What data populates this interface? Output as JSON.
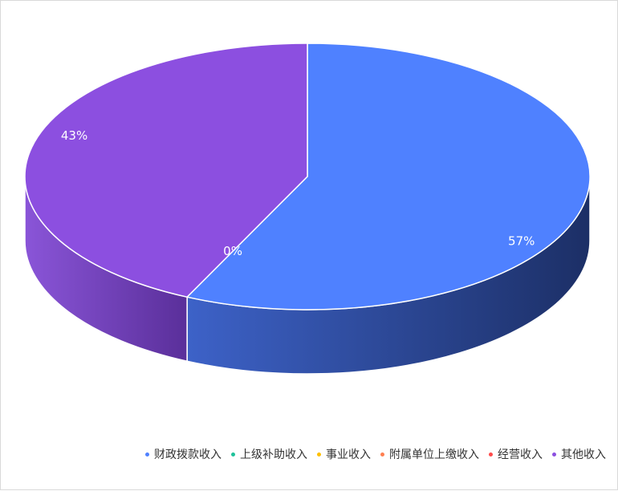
{
  "chart_data": {
    "type": "pie",
    "variant": "3d",
    "categories": [
      "财政拨款收入",
      "上级补助收入",
      "事业收入",
      "附属单位上缴收入",
      "经营收入",
      "其他收入"
    ],
    "values": [
      57,
      0,
      0,
      0,
      0,
      43
    ],
    "labels": [
      "57%",
      "0%",
      "0%",
      "0%",
      "0%",
      "43%"
    ],
    "colors": [
      "#4f81ff",
      "#1fc29a",
      "#ffc000",
      "#ff7f50",
      "#ff4b4b",
      "#8c4fe0"
    ],
    "legend_position": "bottom-right"
  }
}
